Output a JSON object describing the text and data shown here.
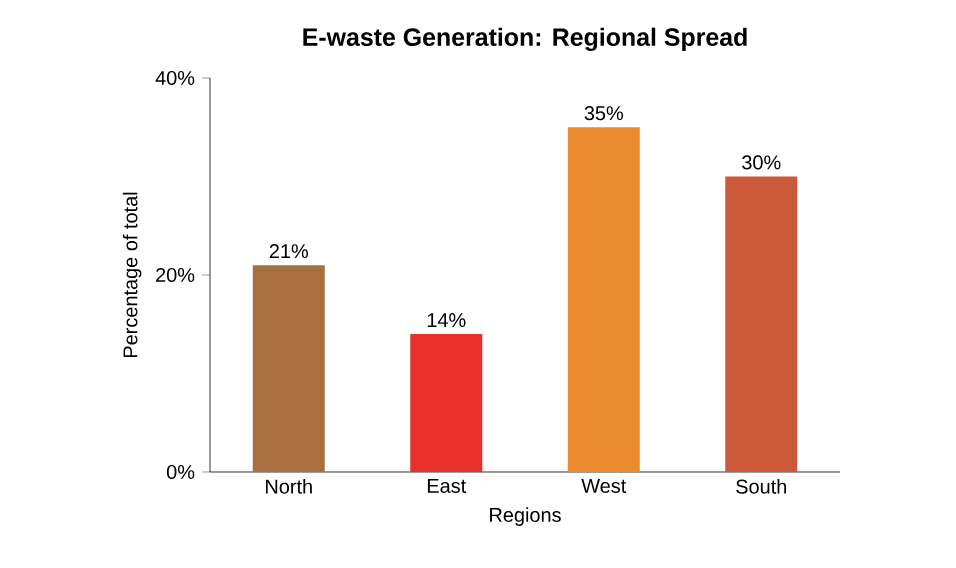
{
  "chart_data": {
    "type": "bar",
    "title": "E-waste Generation: Regional Spread",
    "xlabel": "Regions",
    "ylabel": "Percentage of total",
    "categories": [
      "North",
      "East",
      "West",
      "South"
    ],
    "values": [
      21,
      14,
      35,
      30
    ],
    "colors": [
      "#a8703f",
      "#e8302a",
      "#ec8a30",
      "#cc5a3a"
    ],
    "value_labels": [
      "21%",
      "14%",
      "35%",
      "30%"
    ],
    "ylim": [
      0,
      40
    ],
    "yticks": [
      {
        "value": 0,
        "label": "0%"
      },
      {
        "value": 20,
        "label": "20%"
      },
      {
        "value": 40,
        "label": "40%"
      }
    ]
  }
}
